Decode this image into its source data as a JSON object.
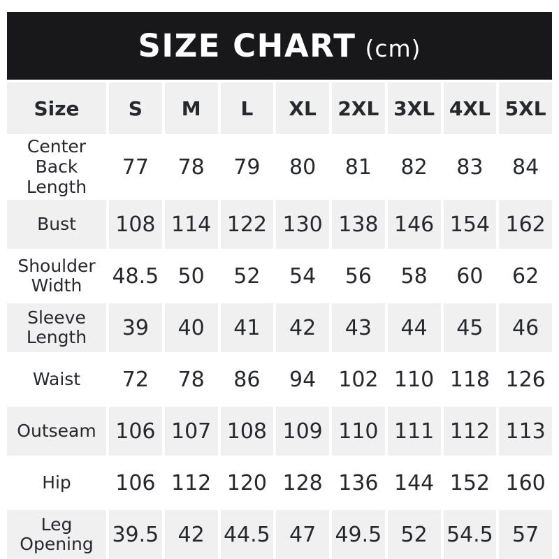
{
  "banner": {
    "title": "SIZE CHART",
    "unit": "(cm)"
  },
  "colors": {
    "banner_bg": "#18181a",
    "banner_text": "#ffffff",
    "row_stripe": "#f0f0f1",
    "text": "#27282c",
    "page_bg": "#ffffff"
  },
  "chart_data": {
    "type": "table",
    "title": "SIZE CHART (cm)",
    "unit": "cm",
    "columns": [
      "Size",
      "S",
      "M",
      "L",
      "XL",
      "2XL",
      "3XL",
      "4XL",
      "5XL"
    ],
    "rows": [
      {
        "label": "Center Back Length",
        "values": [
          77,
          78,
          79,
          80,
          81,
          82,
          83,
          84
        ]
      },
      {
        "label": "Bust",
        "values": [
          108,
          114,
          122,
          130,
          138,
          146,
          154,
          162
        ]
      },
      {
        "label": "Shoulder Width",
        "values": [
          48.5,
          50,
          52,
          54,
          56,
          58,
          60,
          62
        ]
      },
      {
        "label": "Sleeve Length",
        "values": [
          39,
          40,
          41,
          42,
          43,
          44,
          45,
          46
        ]
      },
      {
        "label": "Waist",
        "values": [
          72,
          78,
          86,
          94,
          102,
          110,
          118,
          126
        ]
      },
      {
        "label": "Outseam",
        "values": [
          106,
          107,
          108,
          109,
          110,
          111,
          112,
          113
        ]
      },
      {
        "label": "Hip",
        "values": [
          106,
          112,
          120,
          128,
          136,
          144,
          152,
          160
        ]
      },
      {
        "label": "Leg Opening",
        "values": [
          39.5,
          42,
          44.5,
          47,
          49.5,
          52,
          54.5,
          57
        ]
      }
    ],
    "layout": {
      "striped_rows": [
        "Size header",
        "Bust",
        "Sleeve Length",
        "Outseam",
        "Leg Opening"
      ],
      "grid": "white 4px separators between cells on striped rows"
    }
  }
}
